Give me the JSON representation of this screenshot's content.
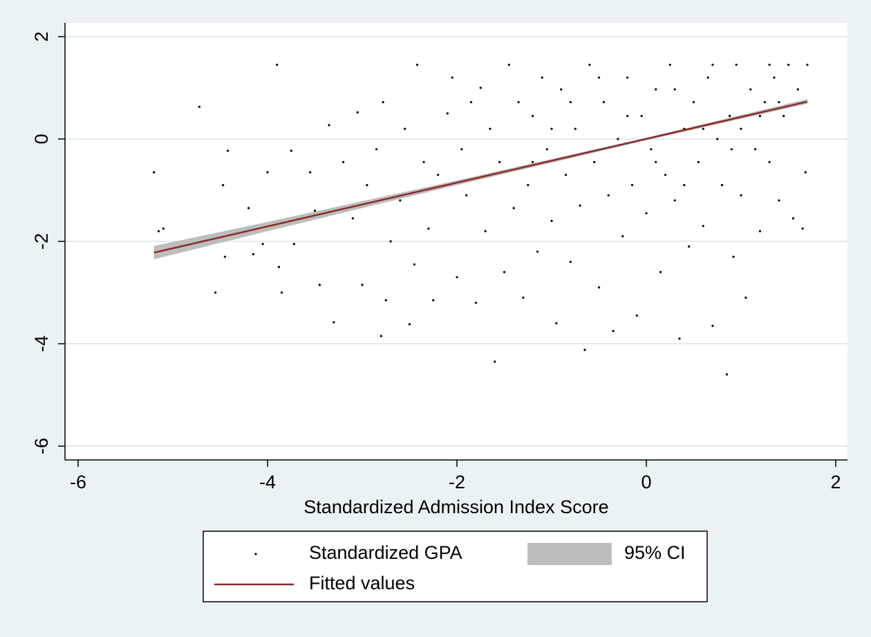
{
  "chart_data": {
    "type": "scatter",
    "xlabel": "Standardized Admission Index Score",
    "xlim": [
      -6.139,
      2.124
    ],
    "ylim": [
      -6.27,
      2.27
    ],
    "xticks": [
      -6,
      -4,
      -2,
      0,
      2
    ],
    "yticks": [
      -6,
      -4,
      -2,
      0,
      2
    ],
    "grid": true,
    "series": [
      {
        "name": "Standardized GPA",
        "type": "scatter",
        "color": "#000000",
        "x": [
          -5.2,
          -5.15,
          -5.1,
          -4.72,
          -4.55,
          -4.47,
          -4.42,
          -4.45,
          -4.2,
          -4.15,
          -4.05,
          -4.0,
          -3.9,
          -3.88,
          -3.85,
          -3.75,
          -3.72,
          -3.55,
          -3.5,
          -3.45,
          -3.35,
          -3.3,
          -3.2,
          -3.1,
          -3.05,
          -3.0,
          -2.95,
          -2.85,
          -2.8,
          -2.78,
          -2.75,
          -2.7,
          -2.6,
          -2.55,
          -2.5,
          -2.45,
          -2.42,
          -2.35,
          -2.3,
          -2.25,
          -2.2,
          -2.1,
          -2.05,
          -2.0,
          -1.95,
          -1.9,
          -1.85,
          -1.8,
          -1.75,
          -1.7,
          -1.65,
          -1.6,
          -1.55,
          -1.5,
          -1.45,
          -1.4,
          -1.35,
          -1.3,
          -1.25,
          -1.2,
          -1.15,
          -1.1,
          -1.05,
          -1.0,
          -0.95,
          -0.9,
          -0.85,
          -0.8,
          -0.75,
          -0.7,
          -0.65,
          -0.6,
          -0.55,
          -0.5,
          -0.45,
          -0.4,
          -0.35,
          -0.3,
          -0.25,
          -0.2,
          -0.15,
          -0.1,
          -0.05,
          0.0,
          0.05,
          0.1,
          0.15,
          0.2,
          0.25,
          0.3,
          0.35,
          0.4,
          0.45,
          0.5,
          0.55,
          0.6,
          0.65,
          0.7,
          0.75,
          0.8,
          0.85,
          0.88,
          0.92,
          0.95,
          1.0,
          1.05,
          1.1,
          1.15,
          1.2,
          1.25,
          1.3,
          1.35,
          1.4,
          1.45,
          1.5,
          1.55,
          1.6,
          1.65,
          1.7,
          1.68,
          -0.5,
          -0.2,
          0.3,
          0.6,
          0.9,
          1.2,
          1.3,
          -1.0,
          -0.8,
          0.1,
          0.4,
          0.7,
          1.0,
          1.4,
          -1.2
        ],
        "values": [
          -0.65,
          -1.8,
          -1.75,
          0.63,
          -3.0,
          -0.9,
          -0.23,
          -2.3,
          -1.35,
          -2.25,
          -2.05,
          -0.65,
          1.45,
          -2.5,
          -3.0,
          -0.23,
          -2.05,
          -0.65,
          -1.4,
          -2.85,
          0.27,
          -3.58,
          -0.45,
          -1.55,
          0.52,
          -2.85,
          -0.9,
          -0.2,
          -3.85,
          0.72,
          -3.15,
          -2.0,
          -1.2,
          0.2,
          -3.62,
          -2.45,
          1.45,
          -0.45,
          -1.75,
          -3.15,
          -0.7,
          0.5,
          1.2,
          -2.7,
          -0.2,
          -1.1,
          0.72,
          -3.2,
          1.0,
          -1.8,
          0.2,
          -4.35,
          -0.45,
          -2.6,
          1.45,
          -1.35,
          0.72,
          -3.1,
          -0.9,
          0.45,
          -2.2,
          1.2,
          -0.2,
          -1.6,
          -3.6,
          0.97,
          -0.7,
          -2.4,
          0.2,
          -1.3,
          -4.12,
          1.45,
          -0.45,
          -2.9,
          0.72,
          -1.1,
          -3.75,
          0.0,
          -1.9,
          1.2,
          -0.9,
          -3.45,
          0.45,
          -1.45,
          -0.2,
          0.97,
          -2.6,
          -0.7,
          1.45,
          -1.2,
          -3.9,
          0.2,
          -2.1,
          0.72,
          -0.45,
          -1.7,
          1.2,
          -3.65,
          0.0,
          -0.9,
          -4.6,
          0.45,
          -2.3,
          1.45,
          -1.1,
          -3.1,
          0.97,
          -0.2,
          -1.8,
          0.72,
          -0.45,
          1.2,
          -1.2,
          0.45,
          1.45,
          -1.55,
          0.97,
          -1.75,
          1.45,
          -0.65,
          1.2,
          0.45,
          0.97,
          0.2,
          -0.2,
          0.45,
          1.45,
          0.2,
          0.72,
          -0.45,
          -0.9,
          1.45,
          0.2,
          0.72,
          -0.45
        ]
      },
      {
        "name": "95% CI",
        "type": "band",
        "color": "#bdbdbd",
        "x": [
          -5.2,
          -4,
          -2,
          0,
          1.7
        ],
        "lower": [
          -2.35,
          -1.8,
          -0.9,
          -0.025,
          0.69
        ],
        "upper": [
          -2.09,
          -1.62,
          -0.81,
          0.025,
          0.78
        ]
      },
      {
        "name": "Fitted values",
        "type": "line",
        "color": "#8b2a2a",
        "x": [
          -5.2,
          1.7
        ],
        "values": [
          -2.22,
          0.73
        ]
      }
    ]
  }
}
